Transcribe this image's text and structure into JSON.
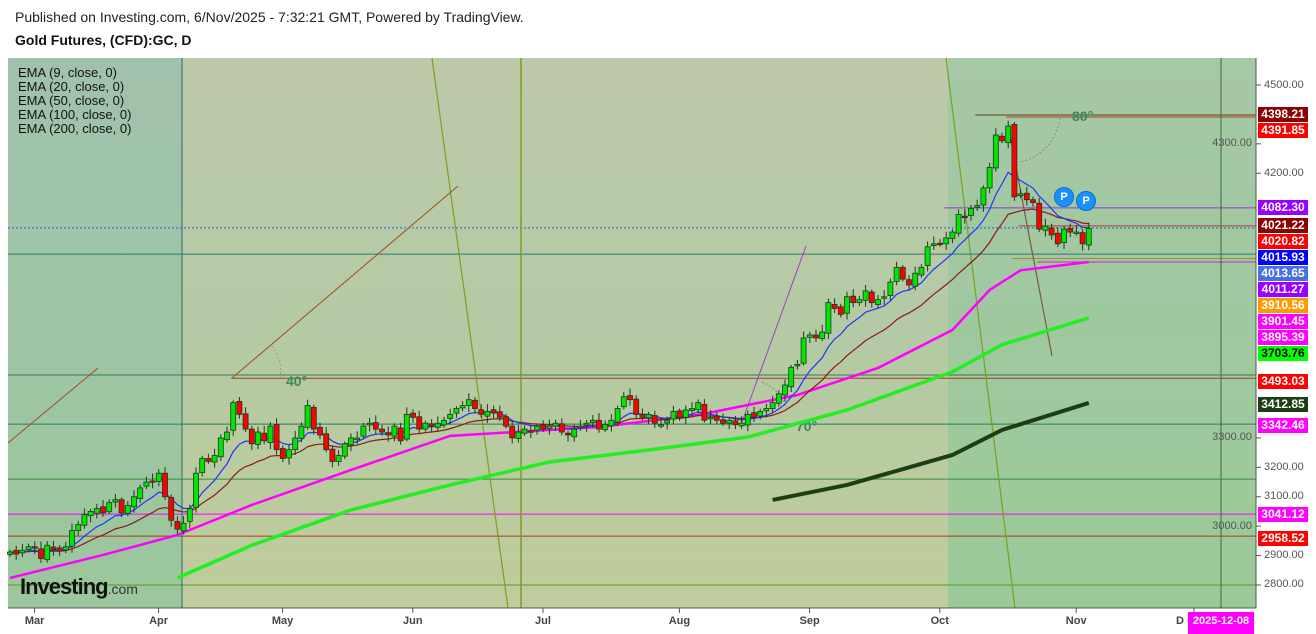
{
  "header": {
    "published": "Published on Investing.com, 6/Nov/2025 - 7:32:21 GMT, Powered by TradingView.",
    "title": "Gold Futures, (CFD):GC, D"
  },
  "legend": [
    "EMA (9, close, 0)",
    "EMA (20, close, 0)",
    "EMA (50, close, 0)",
    "EMA (100, close, 0)",
    "EMA (200, close, 0)"
  ],
  "logo": {
    "main": "Investing",
    "suffix": ".com"
  },
  "colors": {
    "up": "#00e600",
    "down": "#ff0000",
    "ema9": "#2233ff",
    "ema20": "#8b1a1a",
    "ema50": "#ff00ff",
    "ema100": "#22ee22",
    "ema200": "#1e3d14"
  },
  "chart_data": {
    "type": "candlestick",
    "title": "Gold Futures, (CFD):GC, D",
    "ylim": [
      2720,
      4590
    ],
    "y_ticks": [
      "4500.00",
      "4300.00",
      "4200.00",
      "3300.00",
      "3200.00",
      "3100.00",
      "3000.00",
      "2900.00",
      "2800.00"
    ],
    "y_tick_values": [
      4500,
      4300,
      4200,
      3300,
      3200,
      3100,
      3000,
      2900,
      2800
    ],
    "x_ticks": [
      "Mar",
      "Apr",
      "May",
      "Jun",
      "Jul",
      "Aug",
      "Sep",
      "Oct",
      "Nov",
      "D"
    ],
    "x_tick_bar_index": [
      3,
      23,
      43,
      64,
      85,
      107,
      128,
      149,
      171,
      190
    ],
    "cursor_date": "2025-12-08",
    "closes": [
      2912,
      2905,
      2918,
      2930,
      2925,
      2890,
      2935,
      2920,
      2915,
      2930,
      2985,
      3005,
      3040,
      3050,
      3060,
      3045,
      3080,
      3090,
      3045,
      3070,
      3100,
      3130,
      3150,
      3150,
      3180,
      3100,
      3020,
      2990,
      3010,
      3060,
      3180,
      3230,
      3220,
      3240,
      3300,
      3320,
      3420,
      3380,
      3330,
      3280,
      3320,
      3290,
      3340,
      3260,
      3230,
      3260,
      3300,
      3340,
      3410,
      3330,
      3310,
      3260,
      3220,
      3240,
      3280,
      3300,
      3300,
      3340,
      3350,
      3330,
      3320,
      3310,
      3340,
      3290,
      3380,
      3370,
      3330,
      3350,
      3340,
      3350,
      3360,
      3380,
      3400,
      3410,
      3430,
      3400,
      3380,
      3390,
      3385,
      3370,
      3340,
      3300,
      3320,
      3330,
      3320,
      3340,
      3330,
      3340,
      3350,
      3320,
      3310,
      3330,
      3340,
      3350,
      3360,
      3330,
      3345,
      3360,
      3400,
      3440,
      3430,
      3380,
      3370,
      3380,
      3350,
      3345,
      3360,
      3390,
      3370,
      3395,
      3400,
      3420,
      3360,
      3370,
      3360,
      3350,
      3360,
      3345,
      3350,
      3380,
      3370,
      3390,
      3400,
      3420,
      3450,
      3480,
      3540,
      3550,
      3640,
      3650,
      3640,
      3660,
      3760,
      3740,
      3720,
      3780,
      3760,
      3770,
      3800,
      3760,
      3770,
      3780,
      3830,
      3880,
      3840,
      3820,
      3860,
      3880,
      3950,
      3960,
      3960,
      3980,
      4000,
      4060,
      4050,
      4080,
      4090,
      4150,
      4220,
      4330,
      4310,
      4360,
      4120,
      4130,
      4110,
      4100,
      4010,
      4020,
      3990,
      3960,
      4010,
      4000,
      4000,
      3960,
      4012
    ],
    "series": [
      {
        "name": "EMA (50, close, 0)",
        "color": "#ff00ff",
        "points": [
          [
            0,
            2824
          ],
          [
            15,
            2902
          ],
          [
            27,
            2970
          ],
          [
            39,
            3072
          ],
          [
            55,
            3191
          ],
          [
            71,
            3307
          ],
          [
            95,
            3337
          ],
          [
            111,
            3378
          ],
          [
            127,
            3446
          ],
          [
            140,
            3538
          ],
          [
            152,
            3667
          ],
          [
            158,
            3803
          ],
          [
            163,
            3870
          ],
          [
            174,
            3898
          ]
        ]
      },
      {
        "name": "EMA (100, close, 0)",
        "color": "#22ee22",
        "points": [
          [
            27,
            2824
          ],
          [
            39,
            2935
          ],
          [
            55,
            3055
          ],
          [
            71,
            3140
          ],
          [
            87,
            3218
          ],
          [
            103,
            3259
          ],
          [
            119,
            3303
          ],
          [
            135,
            3395
          ],
          [
            152,
            3525
          ],
          [
            160,
            3617
          ],
          [
            174,
            3708
          ]
        ]
      },
      {
        "name": "EMA (200, close, 0)",
        "color": "#1e3d14",
        "points": [
          [
            123,
            3089
          ],
          [
            135,
            3140
          ],
          [
            152,
            3242
          ],
          [
            160,
            3327
          ],
          [
            174,
            3419
          ]
        ]
      }
    ],
    "horizontal_levels": [
      {
        "price": 4398,
        "color": "#6b3a1a",
        "from_bar": 156
      },
      {
        "price": 4391,
        "color": "#b04020",
        "from_bar": 161
      },
      {
        "price": 4082,
        "color": "#8a3ad0",
        "from_bar": 151
      },
      {
        "price": 4021,
        "color": "#b04020",
        "from_bar": 163
      },
      {
        "price": 4014,
        "color": "#3355ff",
        "from_bar": 0,
        "dashed": true
      },
      {
        "price": 3925,
        "color": "#2a7a70",
        "from_bar": 0
      },
      {
        "price": 3910,
        "color": "#a09020",
        "from_bar": 162
      },
      {
        "price": 3898,
        "color": "#d020d0",
        "from_bar": 166
      },
      {
        "price": 3514,
        "color": "#3a7a4a",
        "from_bar": 0
      },
      {
        "price": 3503,
        "color": "#a04020",
        "from_bar": 36
      },
      {
        "price": 3347,
        "color": "#2a7a60",
        "from_bar": 0
      },
      {
        "price": 3160,
        "color": "#3a8a3a",
        "from_bar": 0
      },
      {
        "price": 3041,
        "color": "#ff00ff",
        "from_bar": 0
      },
      {
        "price": 2966,
        "color": "#b03a1a",
        "from_bar": 0
      },
      {
        "price": 2800,
        "color": "#5a9a2a",
        "from_bar": 0
      }
    ],
    "angle_labels": [
      "40°",
      "70°",
      "80°"
    ],
    "price_labels": [
      {
        "text": "4398.21",
        "bg": "#8b0000",
        "fg": "#ffffff"
      },
      {
        "text": "4391.85",
        "bg": "#ff0000",
        "fg": "#ffffff"
      },
      {
        "text": "4082.30",
        "bg": "#9900ff",
        "fg": "#ffffff"
      },
      {
        "text": "4021.22",
        "bg": "#8b0000",
        "fg": "#ffffff"
      },
      {
        "text": "4020.82",
        "bg": "#ff0000",
        "fg": "#ffffff"
      },
      {
        "text": "4015.93",
        "bg": "#0000ff",
        "fg": "#ffffff"
      },
      {
        "text": "4013.65",
        "bg": "#4a70e0",
        "fg": "#ffffff"
      },
      {
        "text": "4011.27",
        "bg": "#9900ff",
        "fg": "#ffffff"
      },
      {
        "text": "3910.56",
        "bg": "#ff9900",
        "fg": "#ffffff"
      },
      {
        "text": "3901.45",
        "bg": "#ff00ff",
        "fg": "#ffffff"
      },
      {
        "text": "3895.39",
        "bg": "#ff00ff",
        "fg": "#ffffff"
      },
      {
        "text": "3703.76",
        "bg": "#00ff00",
        "fg": "#000000"
      },
      {
        "text": "3493.03",
        "bg": "#ff0000",
        "fg": "#ffffff"
      },
      {
        "text": "3412.85",
        "bg": "#1e3d14",
        "fg": "#ffffff"
      },
      {
        "text": "3342.46",
        "bg": "#ff00ff",
        "fg": "#ffffff"
      },
      {
        "text": "3041.12",
        "bg": "#ff00ff",
        "fg": "#ffffff"
      },
      {
        "text": "2958.52",
        "bg": "#ff0000",
        "fg": "#ffffff"
      }
    ],
    "markers": [
      "P",
      "P"
    ]
  }
}
